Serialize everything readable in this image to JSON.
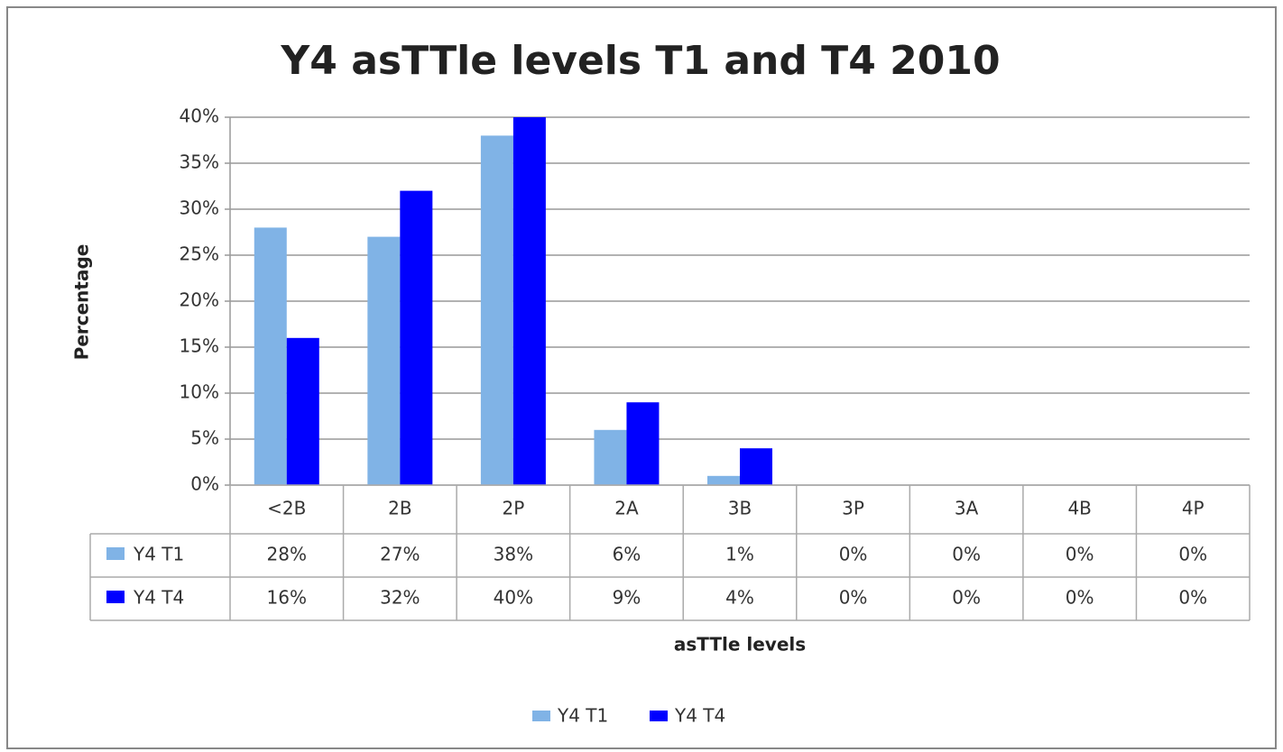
{
  "chart_data": {
    "type": "bar",
    "title": "Y4 asTTle levels T1 and T4 2010",
    "y_label": "Percentage",
    "x_label": "asTTle levels",
    "categories": [
      "<2B",
      "2B",
      "2P",
      "2A",
      "3B",
      "3P",
      "3A",
      "4B",
      "4P"
    ],
    "series": [
      {
        "name": "Y4 T1",
        "color": "#80b3e6",
        "values": [
          28,
          27,
          38,
          6,
          1,
          0,
          0,
          0,
          0
        ],
        "value_labels": [
          "28%",
          "27%",
          "38%",
          "6%",
          "1%",
          "0%",
          "0%",
          "0%",
          "0%"
        ]
      },
      {
        "name": "Y4 T4",
        "color": "#0000ff",
        "values": [
          16,
          32,
          40,
          9,
          4,
          0,
          0,
          0,
          0
        ],
        "value_labels": [
          "16%",
          "32%",
          "40%",
          "9%",
          "4%",
          "0%",
          "0%",
          "0%",
          "0%"
        ]
      }
    ],
    "ylim": [
      0,
      40
    ],
    "yticks": [
      {
        "value": 0,
        "label": "0%"
      },
      {
        "value": 5,
        "label": "5%"
      },
      {
        "value": 10,
        "label": "10%"
      },
      {
        "value": 15,
        "label": "15%"
      },
      {
        "value": 20,
        "label": "20%"
      },
      {
        "value": 25,
        "label": "25%"
      },
      {
        "value": 30,
        "label": "30%"
      },
      {
        "value": 35,
        "label": "35%"
      },
      {
        "value": 40,
        "label": "40%"
      }
    ],
    "grid": true,
    "data_table": true,
    "legend": "bottom"
  }
}
